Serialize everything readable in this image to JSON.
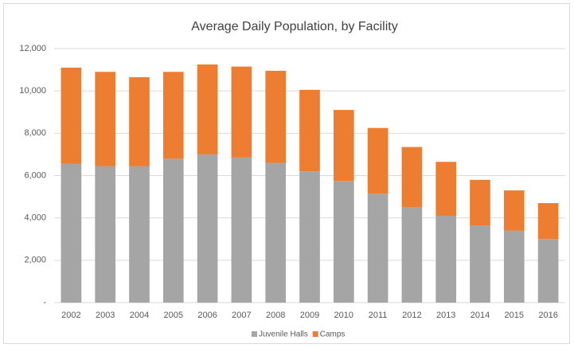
{
  "chart_data": {
    "type": "stacked_bar",
    "title": "Average Daily Population,  by Facility",
    "categories": [
      "2002",
      "2003",
      "2004",
      "2005",
      "2006",
      "2007",
      "2008",
      "2009",
      "2010",
      "2011",
      "2012",
      "2013",
      "2014",
      "2015",
      "2016"
    ],
    "series": [
      {
        "name": "Juvenile Halls",
        "color": "#a5a5a5",
        "values": [
          6550,
          6450,
          6450,
          6800,
          7000,
          6850,
          6600,
          6200,
          5750,
          5150,
          4500,
          4100,
          3650,
          3400,
          3000
        ]
      },
      {
        "name": "Camps",
        "color": "#ed7d31",
        "values": [
          4550,
          4450,
          4200,
          4100,
          4250,
          4300,
          4350,
          3850,
          3350,
          3100,
          2850,
          2550,
          2150,
          1900,
          1700
        ]
      }
    ],
    "ylim": [
      0,
      12000
    ],
    "yticks": [
      {
        "value": 0,
        "label": "-"
      },
      {
        "value": 2000,
        "label": "2,000"
      },
      {
        "value": 4000,
        "label": "4,000"
      },
      {
        "value": 6000,
        "label": "6,000"
      },
      {
        "value": 8000,
        "label": "8,000"
      },
      {
        "value": 10000,
        "label": "10,000"
      },
      {
        "value": 12000,
        "label": "12,000"
      }
    ],
    "grid": true,
    "legend": "bottom"
  }
}
